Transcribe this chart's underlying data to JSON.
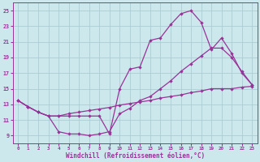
{
  "bg_color": "#cce8ec",
  "grid_color": "#aacdd4",
  "line_color": "#993399",
  "xlabel": "Windchill (Refroidissement éolien,°C)",
  "xlim": [
    -0.5,
    23.5
  ],
  "ylim": [
    8.0,
    26.0
  ],
  "yticks": [
    9,
    11,
    13,
    15,
    17,
    19,
    21,
    23,
    25
  ],
  "xticks": [
    0,
    1,
    2,
    3,
    4,
    5,
    6,
    7,
    8,
    9,
    10,
    11,
    12,
    13,
    14,
    15,
    16,
    17,
    18,
    19,
    20,
    21,
    22,
    23
  ],
  "curve1_x": [
    0,
    1,
    2,
    3,
    4,
    5,
    6,
    7,
    8,
    9,
    10,
    11,
    12,
    13,
    14,
    15,
    16,
    17,
    18,
    19,
    20,
    21,
    22,
    23
  ],
  "curve1_y": [
    13.5,
    12.7,
    12.0,
    11.5,
    11.5,
    11.5,
    11.5,
    11.5,
    11.5,
    9.2,
    15.0,
    17.5,
    17.8,
    21.2,
    21.5,
    23.2,
    24.6,
    25.0,
    23.5,
    20.0,
    21.5,
    19.5,
    17.0,
    15.5
  ],
  "curve2_x": [
    0,
    1,
    2,
    3,
    4,
    5,
    6,
    7,
    8,
    9,
    10,
    11,
    12,
    13,
    14,
    15,
    16,
    17,
    18,
    19,
    20,
    21,
    22,
    23
  ],
  "curve2_y": [
    13.5,
    12.7,
    12.0,
    11.5,
    9.5,
    9.2,
    9.2,
    9.0,
    9.2,
    9.5,
    11.8,
    12.5,
    13.5,
    14.0,
    15.0,
    16.0,
    17.2,
    18.2,
    19.2,
    20.2,
    20.2,
    19.0,
    17.2,
    15.5
  ],
  "curve3_x": [
    0,
    1,
    2,
    3,
    4,
    5,
    6,
    7,
    8,
    9,
    10,
    11,
    12,
    13,
    14,
    15,
    16,
    17,
    18,
    19,
    20,
    21,
    22,
    23
  ],
  "curve3_y": [
    13.5,
    12.7,
    12.0,
    11.5,
    11.5,
    11.8,
    12.0,
    12.2,
    12.4,
    12.6,
    12.9,
    13.1,
    13.3,
    13.5,
    13.8,
    14.0,
    14.2,
    14.5,
    14.7,
    15.0,
    15.0,
    15.0,
    15.2,
    15.3
  ]
}
